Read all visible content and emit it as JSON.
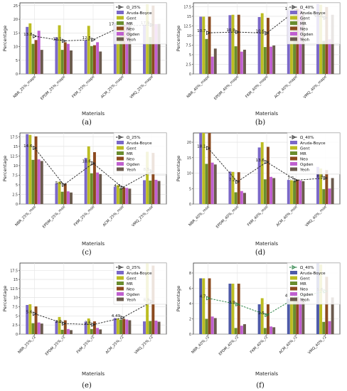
{
  "figure": {
    "captions": [
      "(a)",
      "(b)",
      "(c)",
      "(d)",
      "(e)",
      "(f)"
    ]
  },
  "chart_data": [
    {
      "type": "bar",
      "panel": "a",
      "title": "",
      "xlabel": "Materials",
      "ylabel": "Percentage",
      "ylim": [
        0,
        26
      ],
      "yticks": [
        0,
        5,
        10,
        15,
        20,
        25
      ],
      "grid": true,
      "legend_position": "top-right",
      "categories": [
        "NBR_25%_mape",
        "EPDM_25%_mape",
        "FKM_25%_mape",
        "ACM_25%_mape",
        "VMQ_25%_mape"
      ],
      "series": [
        {
          "name": "Aruda-Boyce",
          "color": "#7b68c8",
          "values": [
            17.2,
            13.4,
            12.3,
            18.8,
            18.0
          ]
        },
        {
          "name": "Gent",
          "color": "#bcbd22",
          "values": [
            18.5,
            17.8,
            17.6,
            18.6,
            25.5
          ]
        },
        {
          "name": "MR",
          "color": "#6a8d2e",
          "values": [
            11.0,
            8.8,
            10.2,
            17.8,
            13.5
          ]
        },
        {
          "name": "Neo",
          "color": "#8c4a1e",
          "values": [
            12.4,
            11.6,
            10.5,
            18.2,
            25.0
          ]
        },
        {
          "name": "Ogden",
          "color": "#c05fd0",
          "values": [
            15.8,
            11.0,
            11.6,
            19.0,
            18.2
          ]
        },
        {
          "name": "Yeoh",
          "color": "#6b5b4e",
          "values": [
            8.8,
            8.6,
            8.2,
            18.7,
            18.3
          ]
        }
      ],
      "line": {
        "name": "Ω_25%",
        "style": "dashed",
        "marker": "triangle-right",
        "color": "#222222",
        "values": [
          13.8,
          12.1,
          12.5,
          17.52,
          17.9
        ]
      },
      "annotations": [
        "13.8",
        "12.1",
        "12.5",
        "17.52",
        "17.9"
      ]
    },
    {
      "type": "bar",
      "panel": "b",
      "title": "",
      "xlabel": "Materials",
      "ylabel": "Percentage",
      "ylim": [
        0,
        18.5
      ],
      "yticks": [
        0,
        2.5,
        5.0,
        7.5,
        10.0,
        12.5,
        15.0,
        17.5
      ],
      "grid": true,
      "legend_position": "top-right",
      "categories": [
        "NBR_40%_mape",
        "EPDM_40%_mape",
        "FKM_40%_mape",
        "ACM_40%_mape",
        "VMQ_40%_mape"
      ],
      "series": [
        {
          "name": "Aruda-Boyce",
          "color": "#7b68c8",
          "values": [
            14.9,
            15.3,
            14.8,
            16.6,
            18.2
          ]
        },
        {
          "name": "Gent",
          "color": "#bcbd22",
          "values": [
            14.9,
            15.4,
            15.8,
            16.2,
            18.0
          ]
        },
        {
          "name": "MR",
          "color": "#6a8d2e",
          "values": [
            9.1,
            7.2,
            7.0,
            15.5,
            8.6
          ]
        },
        {
          "name": "Neo",
          "color": "#8c4a1e",
          "values": [
            14.9,
            15.4,
            14.6,
            17.0,
            17.4
          ]
        },
        {
          "name": "Ogden",
          "color": "#c05fd0",
          "values": [
            4.5,
            5.8,
            7.1,
            16.9,
            9.0
          ]
        },
        {
          "name": "Yeoh",
          "color": "#6b5b4e",
          "values": [
            6.6,
            6.3,
            7.4,
            16.3,
            15.4
          ]
        }
      ],
      "line": {
        "name": "Ω_40%",
        "style": "dashed",
        "marker": "triangle-right",
        "color": "#222222",
        "values": [
          10.7,
          10.9,
          10.6,
          16.5,
          14.6
        ]
      },
      "annotations": [
        "10.7",
        "10.9",
        "10.6",
        "16.5",
        "14.6"
      ]
    },
    {
      "type": "bar",
      "panel": "c",
      "title": "",
      "xlabel": "Materials",
      "ylabel": "Percentage",
      "ylim": [
        0,
        18.5
      ],
      "yticks": [
        0,
        2.5,
        5.0,
        7.5,
        10.0,
        12.5,
        15.0,
        17.5
      ],
      "grid": true,
      "legend_position": "top-right",
      "categories": [
        "NBR_25%_mse",
        "EPDM_25%_mse",
        "FKM_25%_mse",
        "ACM_25%_mse",
        "VMQ_25%_mse"
      ],
      "series": [
        {
          "name": "Aruda-Boyce",
          "color": "#7b68c8",
          "values": [
            18.2,
            5.4,
            12.0,
            4.5,
            6.2
          ]
        },
        {
          "name": "Gent",
          "color": "#bcbd22",
          "values": [
            18.0,
            5.8,
            15.0,
            4.9,
            13.6
          ]
        },
        {
          "name": "MR",
          "color": "#6a8d2e",
          "values": [
            11.5,
            3.2,
            8.0,
            4.1,
            6.1
          ]
        },
        {
          "name": "Neo",
          "color": "#8c4a1e",
          "values": [
            17.6,
            5.3,
            13.5,
            4.3,
            13.3
          ]
        },
        {
          "name": "Ogden",
          "color": "#c05fd0",
          "values": [
            11.6,
            3.3,
            8.2,
            4.2,
            6.3
          ]
        },
        {
          "name": "Yeoh",
          "color": "#6b5b4e",
          "values": [
            11.2,
            3.0,
            7.8,
            4.0,
            6.0
          ]
        }
      ],
      "line": {
        "name": "Ω_25%",
        "style": "dashed",
        "marker": "triangle-right",
        "color": "#222222",
        "values": [
          14.6,
          5.0,
          10.6,
          4.3,
          8.5
        ]
      },
      "annotations": [
        "14.6",
        "5.0",
        "10.6",
        "4.3",
        "8.5"
      ]
    },
    {
      "type": "bar",
      "panel": "d",
      "title": "",
      "xlabel": "Materials",
      "ylabel": "Percentage",
      "ylim": [
        0,
        23
      ],
      "yticks": [
        0,
        5,
        10,
        15,
        20
      ],
      "grid": true,
      "legend_position": "top-right",
      "categories": [
        "NBR_40%_mse",
        "EPDM_40%_mse",
        "FKM_40%_mse",
        "ACM_40%_mse",
        "VMQ_40%_mse"
      ],
      "series": [
        {
          "name": "Aruda-Boyce",
          "color": "#7b68c8",
          "values": [
            23.0,
            10.5,
            18.3,
            7.8,
            12.0
          ]
        },
        {
          "name": "Gent",
          "color": "#bcbd22",
          "values": [
            23.0,
            10.4,
            20.0,
            7.7,
            11.5
          ]
        },
        {
          "name": "MR",
          "color": "#6a8d2e",
          "values": [
            13.0,
            3.8,
            8.0,
            7.5,
            4.8
          ]
        },
        {
          "name": "Neo",
          "color": "#8c4a1e",
          "values": [
            23.0,
            10.3,
            18.5,
            7.9,
            11.0
          ]
        },
        {
          "name": "Ogden",
          "color": "#c05fd0",
          "values": [
            13.4,
            4.2,
            8.8,
            7.6,
            5.0
          ]
        },
        {
          "name": "Yeoh",
          "color": "#6b5b4e",
          "values": [
            12.8,
            3.6,
            8.4,
            7.4,
            8.4
          ]
        }
      ],
      "line": {
        "name": "Ω_40%",
        "style": "dashed",
        "marker": "triangle-right",
        "color": "#222222",
        "values": [
          18.1,
          7.2,
          13.6,
          7.7,
          8.4
        ]
      },
      "annotations": [
        "18.1",
        "7.2",
        "13.6",
        "7.7",
        "8.4"
      ]
    },
    {
      "type": "bar",
      "panel": "e",
      "title": "",
      "xlabel": "Materials",
      "ylabel": "Percentage",
      "ylim": [
        0,
        19.5
      ],
      "yticks": [
        0,
        2.5,
        5.0,
        7.5,
        10.0,
        12.5,
        15.0,
        17.5
      ],
      "grid": true,
      "legend_position": "top-right",
      "categories": [
        "NBR_25%_r2",
        "EPDM_25%_r2",
        "FKM_25%_r2",
        "ACM_25%_r2",
        "VMQ_25%_r2"
      ],
      "series": [
        {
          "name": "Aruda-Boyce",
          "color": "#7b68c8",
          "values": [
            8.0,
            3.6,
            3.4,
            4.4,
            3.5
          ]
        },
        {
          "name": "Gent",
          "color": "#bcbd22",
          "values": [
            8.2,
            4.7,
            4.3,
            4.3,
            19.5
          ]
        },
        {
          "name": "MR",
          "color": "#6a8d2e",
          "values": [
            3.0,
            1.2,
            1.4,
            3.9,
            3.6
          ]
        },
        {
          "name": "Neo",
          "color": "#8c4a1e",
          "values": [
            7.6,
            3.8,
            3.5,
            4.2,
            18.8
          ]
        },
        {
          "name": "Ogden",
          "color": "#c05fd0",
          "values": [
            3.2,
            1.4,
            1.7,
            4.0,
            3.7
          ]
        },
        {
          "name": "Yeoh",
          "color": "#6b5b4e",
          "values": [
            2.9,
            1.1,
            1.3,
            3.8,
            3.4
          ]
        }
      ],
      "line": {
        "name": "Ω_25%",
        "style": "dashed",
        "marker": "triangle-right",
        "color": "#222222",
        "values": [
          5.6,
          2.9,
          2.6,
          4.49,
          8.9
        ]
      },
      "annotations": [
        "5.6",
        "2.9",
        "2.6",
        "4.49",
        "8.9"
      ]
    },
    {
      "type": "bar",
      "panel": "f",
      "title": "",
      "xlabel": "Materials",
      "ylabel": "Percentage",
      "ylim": [
        0,
        9.3
      ],
      "yticks": [
        0,
        2,
        4,
        6,
        8
      ],
      "grid": true,
      "legend_position": "top-right",
      "categories": [
        "NBR_40%_r2",
        "EPDM_40%_r2",
        "FKM_40%_r2",
        "ACM_40%_r2",
        "VMQ_40%_r2"
      ],
      "series": [
        {
          "name": "Aruda-Boyce",
          "color": "#4e5aa8",
          "values": [
            7.3,
            6.6,
            3.9,
            4.6,
            9.3
          ]
        },
        {
          "name": "Gent",
          "color": "#bcbd22",
          "values": [
            7.3,
            6.6,
            4.7,
            4.9,
            9.1
          ]
        },
        {
          "name": "MR",
          "color": "#6a8d2e",
          "values": [
            2.0,
            0.8,
            0.8,
            4.4,
            1.6
          ]
        },
        {
          "name": "Neo",
          "color": "#8c4a1e",
          "values": [
            7.3,
            6.6,
            3.9,
            4.9,
            7.5
          ]
        },
        {
          "name": "Ogden",
          "color": "#c05fd0",
          "values": [
            2.3,
            1.1,
            1.0,
            4.6,
            1.7
          ]
        },
        {
          "name": "Yeoh",
          "color": "#6b5b4e",
          "values": [
            2.1,
            1.3,
            0.9,
            4.7,
            4.8
          ]
        }
      ],
      "line": {
        "name": "Ω_40%",
        "style": "dashed",
        "marker": "triangle-right",
        "color": "#1d7a3a",
        "values": [
          4.7,
          3.9,
          2.5,
          4.77,
          5.6
        ]
      },
      "annotations": [
        "4.7",
        "3.9",
        "2.5",
        "4.77",
        "5.6"
      ]
    }
  ]
}
